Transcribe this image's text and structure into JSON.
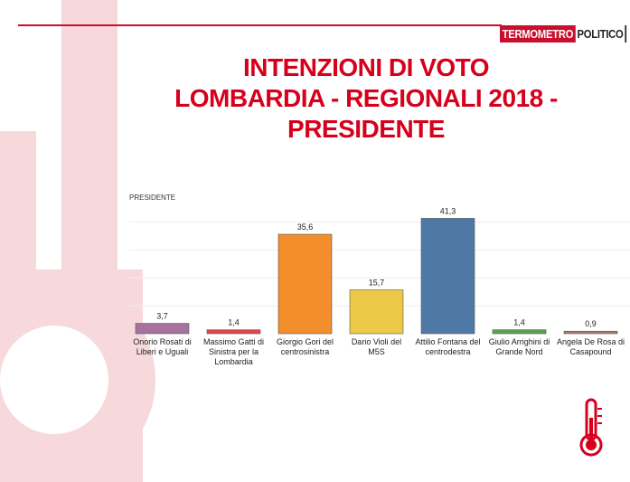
{
  "brand": {
    "part1": "TERMOMETRO",
    "part2": "POLITICO",
    "accent": "#c8102e"
  },
  "header": {
    "title": "INTENZIONI DI VOTO\nLOMBARDIA - REGIONALI 2018 -\nPRESIDENTE",
    "title_color": "#d6001c"
  },
  "icons": {
    "decoration": "thermometer-icon",
    "footer": "thermometer-icon"
  },
  "chart_data": {
    "type": "bar",
    "title": "PRESIDENTE",
    "categories": [
      [
        "Onorio Rosati di",
        "Liberi e Uguali"
      ],
      [
        "Massimo Gatti di",
        "Sinistra per la",
        "Lombardia"
      ],
      [
        "Giorgio Gori del",
        "centrosinistra"
      ],
      [
        "Dario Violi del",
        "M5S"
      ],
      [
        "Attilio Fontana del",
        "centrodestra"
      ],
      [
        "Giulio Arrighini di",
        "Grande Nord"
      ],
      [
        "Angela De Rosa di",
        "Casapound"
      ]
    ],
    "values": [
      3.7,
      1.4,
      35.6,
      15.7,
      41.3,
      1.4,
      0.9
    ],
    "value_labels": [
      "3,7",
      "1,4",
      "35,6",
      "15,7",
      "41,3",
      "1,4",
      "0,9"
    ],
    "colors": [
      "#a7739d",
      "#e0474c",
      "#f28e2b",
      "#edc948",
      "#4e79a7",
      "#59a14f",
      "#b07a6a"
    ],
    "ylim": [
      0,
      45
    ],
    "grid": true,
    "legend": "none",
    "xlabel": "",
    "ylabel": ""
  }
}
